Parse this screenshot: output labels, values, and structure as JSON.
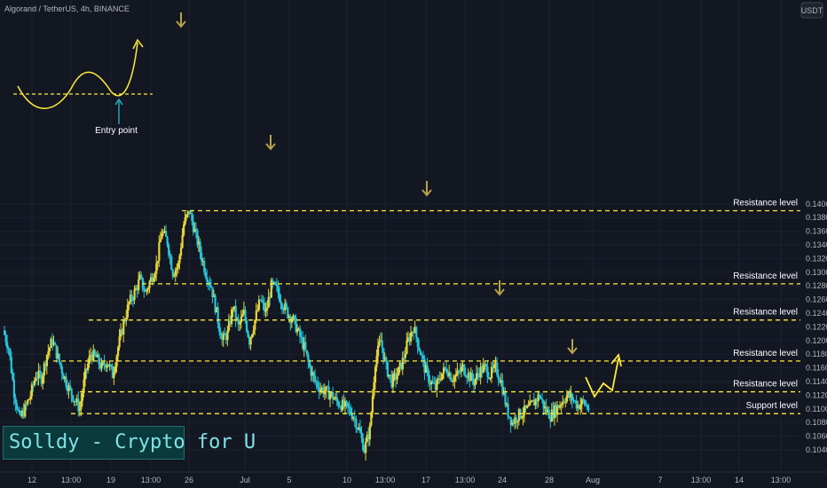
{
  "header": {
    "symbol_title": "Algorand / TetherUS, 4h, BINANCE"
  },
  "currency_badge": "USDT",
  "watermark": "Solldy - Crypto for U",
  "annotations": {
    "entry_point": "Entry point"
  },
  "colors": {
    "background": "#131722",
    "candle_up": "#e6d53a",
    "candle_down": "#26c6da",
    "level_line": "#ffeb3b",
    "arrow": "#b8a24a",
    "axis_text": "#b2b5be"
  },
  "chart_data": {
    "type": "candlestick",
    "title": "Algorand / TetherUS, 4h, BINANCE",
    "ylim": [
      0.103,
      0.1405
    ],
    "y_ticks": [
      "0.1040",
      "0.1060",
      "0.1080",
      "0.1100",
      "0.1120",
      "0.1140",
      "0.1160",
      "0.1180",
      "0.1200",
      "0.1220",
      "0.1240",
      "0.1260",
      "0.1280",
      "0.1300",
      "0.1320",
      "0.1340",
      "0.1360",
      "0.1380",
      "0.1400"
    ],
    "x_ticks": [
      "12",
      "13:00",
      "19",
      "13:00",
      "26",
      "Jul",
      "5",
      "10",
      "13:00",
      "17",
      "13:00",
      "24",
      "28",
      "Aug",
      "7",
      "13:00",
      "14",
      "13:00"
    ],
    "levels": [
      {
        "label": "Resistance level",
        "price": "0.1390"
      },
      {
        "label": "Resistance level",
        "price": "0.1283"
      },
      {
        "label": "Resistance level",
        "price": "0.1230"
      },
      {
        "label": "Resistance level",
        "price": "0.1170"
      },
      {
        "label": "Resistance level",
        "price": "0.1125"
      },
      {
        "label": "Support level",
        "price": "0.1093"
      }
    ],
    "current_price": "0.1102",
    "close_path": [
      0.1215,
      0.119,
      0.1125,
      0.1085,
      0.11,
      0.112,
      0.115,
      0.1145,
      0.118,
      0.12,
      0.1175,
      0.115,
      0.113,
      0.1115,
      0.11,
      0.115,
      0.118,
      0.1175,
      0.116,
      0.117,
      0.115,
      0.119,
      0.1225,
      0.1255,
      0.127,
      0.129,
      0.127,
      0.129,
      0.131,
      0.136,
      0.1345,
      0.13,
      0.131,
      0.137,
      0.139,
      0.136,
      0.133,
      0.13,
      0.128,
      0.124,
      0.12,
      0.121,
      0.125,
      0.122,
      0.124,
      0.12,
      0.123,
      0.126,
      0.124,
      0.128,
      0.1275,
      0.1255,
      0.124,
      0.123,
      0.121,
      0.119,
      0.116,
      0.114,
      0.113,
      0.1125,
      0.112,
      0.111,
      0.1105,
      0.11,
      0.109,
      0.107,
      0.104,
      0.107,
      0.117,
      0.12,
      0.116,
      0.114,
      0.115,
      0.117,
      0.12,
      0.122,
      0.119,
      0.116,
      0.114,
      0.113,
      0.115,
      0.116,
      0.1145,
      0.115,
      0.116,
      0.115,
      0.114,
      0.1155,
      0.116,
      0.115,
      0.116,
      0.114,
      0.11,
      0.108,
      0.109,
      0.1095,
      0.11,
      0.111,
      0.112,
      0.11,
      0.109,
      0.11,
      0.111,
      0.112,
      0.1115,
      0.1105,
      0.111,
      0.11
    ]
  }
}
